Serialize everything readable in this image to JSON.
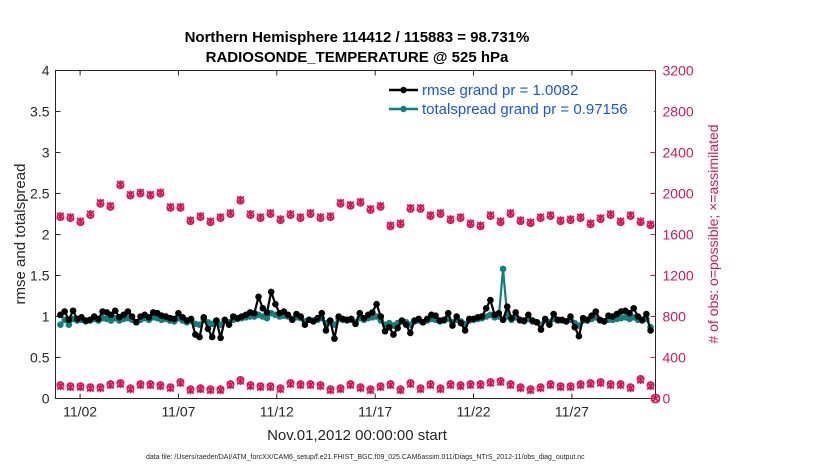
{
  "chart_data": {
    "type": "line",
    "title": [
      "Northern Hemisphere 114412 / 115883 = 98.731%",
      "RADIOSONDE_TEMPERATURE @ 525 hPa"
    ],
    "xlabel": "Nov.01,2012 00:00:00 start",
    "ylabel": "rmse and totalspread",
    "ylabel_right": "# of obs: o=possible; ×=assimilated",
    "footnote": "data file: /Users/raeder/DAI/ATM_forcXX/CAM6_setup/f.e21.FHIST_BGC.f09_025.CAM6assim.011/Diags_NTrS_2012-11/obs_diag_output.nc",
    "x_ticks": [
      "11/02",
      "11/07",
      "11/12",
      "11/17",
      "11/22",
      "11/27"
    ],
    "x_tick_days": [
      2,
      7,
      12,
      17,
      22,
      27
    ],
    "x_range_days": [
      0.75,
      31.25
    ],
    "y_left_ticks": [
      "0",
      "0.5",
      "1",
      "1.5",
      "2",
      "2.5",
      "3",
      "3.5",
      "4"
    ],
    "y_left_range": [
      0,
      4
    ],
    "y_right_ticks": [
      "0",
      "400",
      "800",
      "1200",
      "1600",
      "2000",
      "2400",
      "2800",
      "3200"
    ],
    "y_right_range": [
      0,
      3200
    ],
    "legend": {
      "position": "top-right",
      "entries": [
        "rmse grand pr = 1.0082",
        "totalspread grand pr = 0.97156"
      ]
    },
    "colors": {
      "rmse": "#000000",
      "totalspread": "#147d7d",
      "obs": "#d1195a",
      "legend_text": "#1a55e0"
    },
    "rmse": [
      1.02,
      1.06,
      0.96,
      1.07,
      0.97,
      0.99,
      0.95,
      0.96,
      1.0,
      0.97,
      1.06,
      1.05,
      1.02,
      1.07,
      0.99,
      1.02,
      1.06,
      1.0,
      0.93,
      1.0,
      1.02,
      0.99,
      1.05,
      1.04,
      1.01,
      1.0,
      0.98,
      0.97,
      1.04,
      0.99,
      0.95,
      0.97,
      0.78,
      0.75,
      0.99,
      0.85,
      0.75,
      0.95,
      0.74,
      0.96,
      0.9,
      1.0,
      0.98,
      1.0,
      1.02,
      1.05,
      1.04,
      1.24,
      1.1,
      1.05,
      1.3,
      1.15,
      1.04,
      1.06,
      1.02,
      0.96,
      1.03,
      1.0,
      0.9,
      0.96,
      0.94,
      0.98,
      1.04,
      0.83,
      0.95,
      0.73,
      1.0,
      0.97,
      0.96,
      0.97,
      0.91,
      1.04,
      0.98,
      1.02,
      1.05,
      1.15,
      1.0,
      0.82,
      0.87,
      0.78,
      0.86,
      0.95,
      0.9,
      0.8,
      0.95,
      0.97,
      0.93,
      0.97,
      1.02,
      1.01,
      0.95,
      0.96,
      1.04,
      0.89,
      1.0,
      0.92,
      0.83,
      0.97,
      0.97,
      0.99,
      1.0,
      1.1,
      1.2,
      1.02,
      1.04,
      0.96,
      1.12,
      0.98,
      1.05,
      0.96,
      0.95,
      1.02,
      0.95,
      0.93,
      0.84,
      0.97,
      0.9,
      1.03,
      0.96,
      0.96,
      0.94,
      1.0,
      0.87,
      0.76,
      0.98,
      0.96,
      1.01,
      1.06,
      0.96,
      0.94,
      1.01,
      1.0,
      1.03,
      1.06,
      1.07,
      1.04,
      1.1,
      1.0,
      0.96,
      1.03,
      0.83
    ],
    "totalspread": [
      0.9,
      0.96,
      0.9,
      0.97,
      0.95,
      0.96,
      0.94,
      0.95,
      0.97,
      0.95,
      0.98,
      0.97,
      0.95,
      0.98,
      0.95,
      0.97,
      0.98,
      0.96,
      0.93,
      0.96,
      0.98,
      0.96,
      0.99,
      0.98,
      0.96,
      0.97,
      0.95,
      0.94,
      0.98,
      0.95,
      0.93,
      0.95,
      0.91,
      0.9,
      0.96,
      0.93,
      0.91,
      0.95,
      0.9,
      0.95,
      0.93,
      0.96,
      0.97,
      0.98,
      0.99,
      1.0,
      1.0,
      1.02,
      1.0,
      0.98,
      1.04,
      1.02,
      1.0,
      1.01,
      1.0,
      0.97,
      0.99,
      0.98,
      0.94,
      0.96,
      0.95,
      0.96,
      0.98,
      0.92,
      0.95,
      0.9,
      0.97,
      0.96,
      0.95,
      0.96,
      0.93,
      0.98,
      0.96,
      0.98,
      0.99,
      1.0,
      0.95,
      0.9,
      0.92,
      0.89,
      0.92,
      0.94,
      0.93,
      0.9,
      0.94,
      0.95,
      0.93,
      0.95,
      0.97,
      0.96,
      0.94,
      0.95,
      0.97,
      0.93,
      0.96,
      0.94,
      0.91,
      0.95,
      0.96,
      0.97,
      0.98,
      1.0,
      1.02,
      0.99,
      1.0,
      1.58,
      1.0,
      0.96,
      0.99,
      0.95,
      0.94,
      0.97,
      0.94,
      0.93,
      0.9,
      0.95,
      0.93,
      0.97,
      0.95,
      0.95,
      0.94,
      0.96,
      0.92,
      0.89,
      0.95,
      0.95,
      0.97,
      0.99,
      0.95,
      0.94,
      0.96,
      0.96,
      0.97,
      0.98,
      0.99,
      0.97,
      0.99,
      0.96,
      0.95,
      0.97,
      0.87
    ],
    "obs_possible": [
      1770,
      1760,
      1720,
      1790,
      1900,
      1870,
      2080,
      1980,
      2000,
      1980,
      2000,
      1860,
      1860,
      1730,
      1770,
      1720,
      1760,
      1800,
      1930,
      1790,
      1760,
      1800,
      1740,
      1790,
      1760,
      1800,
      1760,
      1770,
      1900,
      1880,
      1910,
      1840,
      1870,
      1680,
      1700,
      1850,
      1850,
      1780,
      1800,
      1740,
      1760,
      1700,
      1680,
      1780,
      1720,
      1800,
      1730,
      1710,
      1760,
      1780,
      1730,
      1740,
      1760,
      1700,
      1750,
      1790,
      1720,
      1780,
      1720,
      1690
    ],
    "obs_assimilated": [
      1780,
      1770,
      1730,
      1800,
      1910,
      1880,
      2090,
      1990,
      2010,
      1990,
      2010,
      1870,
      1870,
      1740,
      1780,
      1730,
      1770,
      1810,
      1940,
      1800,
      1770,
      1810,
      1750,
      1800,
      1770,
      1810,
      1770,
      1780,
      1910,
      1890,
      1920,
      1850,
      1880,
      1690,
      1710,
      1860,
      1860,
      1790,
      1810,
      1750,
      1770,
      1710,
      1690,
      1790,
      1730,
      1810,
      1740,
      1720,
      1770,
      1790,
      1740,
      1750,
      1770,
      1710,
      1760,
      1800,
      1730,
      1790,
      1730,
      1700
    ],
    "obs_low_possible": [
      130,
      120,
      120,
      110,
      110,
      140,
      150,
      100,
      140,
      140,
      130,
      110,
      160,
      90,
      100,
      90,
      90,
      140,
      180,
      130,
      120,
      120,
      100,
      150,
      140,
      140,
      130,
      90,
      100,
      140,
      110,
      90,
      120,
      140,
      90,
      150,
      100,
      140,
      100,
      140,
      130,
      140,
      140,
      160,
      170,
      140,
      110,
      90,
      110,
      140,
      120,
      120,
      140,
      150,
      160,
      140,
      140,
      110,
      190,
      130
    ],
    "obs_low_assimilated": [
      120,
      110,
      110,
      100,
      100,
      130,
      140,
      90,
      130,
      130,
      120,
      100,
      150,
      80,
      90,
      80,
      80,
      130,
      170,
      120,
      110,
      110,
      90,
      140,
      130,
      130,
      120,
      80,
      90,
      130,
      100,
      80,
      110,
      130,
      80,
      140,
      90,
      130,
      90,
      130,
      120,
      130,
      130,
      150,
      160,
      130,
      100,
      80,
      100,
      130,
      110,
      110,
      130,
      140,
      150,
      130,
      130,
      100,
      180,
      120
    ],
    "obs_last": 0
  }
}
